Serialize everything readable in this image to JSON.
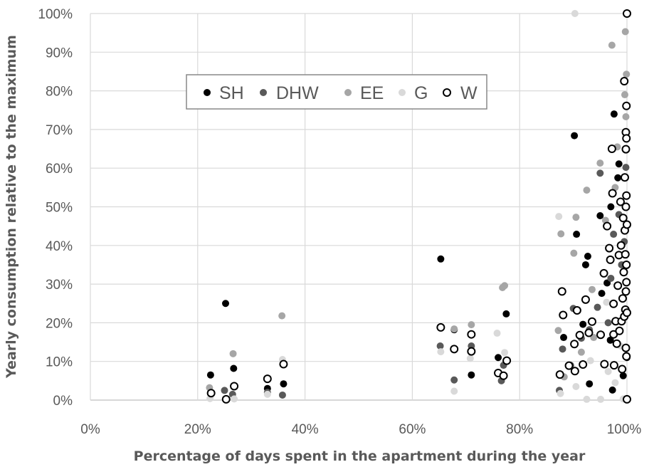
{
  "chart_data": {
    "type": "scatter",
    "xlabel": "Percentage of days spent in the apartment during the year",
    "ylabel": "Yearly consumption relative to the maximum",
    "xlim": [
      0,
      100
    ],
    "ylim": [
      0,
      100
    ],
    "x_ticks": [
      "0%",
      "20%",
      "40%",
      "60%",
      "80%",
      "100%"
    ],
    "y_ticks": [
      "0%",
      "10%",
      "20%",
      "30%",
      "40%",
      "50%",
      "60%",
      "70%",
      "80%",
      "90%",
      "100%"
    ],
    "grid": true,
    "legend_position": "top-center",
    "series": [
      {
        "name": "SH",
        "marker": "filled-circle",
        "color": "#000000",
        "points": [
          [
            22.4,
            6.5
          ],
          [
            25.2,
            25
          ],
          [
            26.7,
            8.2
          ],
          [
            33,
            3
          ],
          [
            36,
            4.2
          ],
          [
            65.3,
            36.5
          ],
          [
            67.8,
            18.2
          ],
          [
            71,
            6.5
          ],
          [
            76,
            11
          ],
          [
            77.5,
            22.3
          ],
          [
            90.2,
            68.4
          ],
          [
            90.6,
            42.9
          ],
          [
            92.3,
            35
          ],
          [
            92.7,
            37.2
          ],
          [
            95,
            47.7
          ],
          [
            97,
            50
          ],
          [
            97.6,
            74
          ],
          [
            98.5,
            61.1
          ],
          [
            98.3,
            57.5
          ],
          [
            96.3,
            30.3
          ],
          [
            95.3,
            27.6
          ],
          [
            93,
            4.2
          ],
          [
            97.3,
            2.6
          ],
          [
            88.2,
            16.2
          ],
          [
            91.8,
            19.6
          ],
          [
            96.9,
            15.5
          ],
          [
            99.3,
            6.3
          ],
          [
            100,
            11
          ]
        ]
      },
      {
        "name": "DHW",
        "marker": "filled-circle",
        "color": "#595959",
        "points": [
          [
            25,
            2.5
          ],
          [
            26.5,
            1.5
          ],
          [
            33,
            2
          ],
          [
            35.8,
            1.3
          ],
          [
            65.2,
            14
          ],
          [
            67.8,
            5.2
          ],
          [
            71,
            14
          ],
          [
            76.6,
            5
          ],
          [
            77,
            9
          ],
          [
            87.4,
            2.5
          ],
          [
            88,
            13.2
          ],
          [
            90,
            23.7
          ],
          [
            91.5,
            16
          ],
          [
            93,
            18.2
          ],
          [
            95,
            58.7
          ],
          [
            96.5,
            20
          ],
          [
            97.5,
            42.9
          ],
          [
            98.5,
            48
          ],
          [
            99.5,
            41
          ],
          [
            99.8,
            60.2
          ],
          [
            89.5,
            9
          ],
          [
            94.5,
            24
          ],
          [
            97,
            31.5
          ],
          [
            99,
            35
          ]
        ]
      },
      {
        "name": "EE",
        "marker": "filled-circle",
        "color": "#a6a6a6",
        "points": [
          [
            22.2,
            3.2
          ],
          [
            26.6,
            12
          ],
          [
            35.7,
            21.8
          ],
          [
            67.8,
            18.4
          ],
          [
            71,
            19.5
          ],
          [
            76.8,
            29.1
          ],
          [
            77.2,
            29.6
          ],
          [
            87.2,
            18
          ],
          [
            87.7,
            43
          ],
          [
            90.1,
            38
          ],
          [
            90.5,
            47.3
          ],
          [
            92.5,
            54.3
          ],
          [
            93.5,
            28.6
          ],
          [
            95,
            61.3
          ],
          [
            97.2,
            91.8
          ],
          [
            99.7,
            95.3
          ],
          [
            99.9,
            84.3
          ],
          [
            99.6,
            79
          ],
          [
            99.8,
            73.3
          ],
          [
            97.8,
            55
          ],
          [
            96,
            46.5
          ],
          [
            88.3,
            6
          ],
          [
            91.5,
            12.4
          ],
          [
            93.8,
            16.2
          ],
          [
            98.2,
            65.5
          ]
        ]
      },
      {
        "name": "G",
        "marker": "filled-circle",
        "color": "#d9d9d9",
        "points": [
          [
            22.3,
            0.4
          ],
          [
            26.8,
            0.3
          ],
          [
            33,
            1.5
          ],
          [
            35.8,
            10.5
          ],
          [
            65.3,
            12.5
          ],
          [
            67.8,
            2.3
          ],
          [
            70.8,
            10.8
          ],
          [
            75.8,
            17.3
          ],
          [
            77.2,
            12.3
          ],
          [
            87.3,
            47.5
          ],
          [
            87.6,
            1.7
          ],
          [
            90.3,
            100
          ],
          [
            90.5,
            3.5
          ],
          [
            92.5,
            0.2
          ],
          [
            95.1,
            0.2
          ],
          [
            96.5,
            7.4
          ],
          [
            97.8,
            4.5
          ],
          [
            99.3,
            0.3
          ],
          [
            98.8,
            14
          ],
          [
            96.2,
            25.3
          ],
          [
            93.2,
            10.2
          ]
        ]
      },
      {
        "name": "W",
        "marker": "open-circle",
        "color": "#000000",
        "points": [
          [
            22.5,
            1.8
          ],
          [
            25.3,
            0.2
          ],
          [
            26.8,
            3.6
          ],
          [
            33,
            5.5
          ],
          [
            36,
            9.3
          ],
          [
            65.3,
            18.8
          ],
          [
            67.8,
            13.2
          ],
          [
            71,
            17
          ],
          [
            71,
            12.6
          ],
          [
            76,
            7
          ],
          [
            77,
            6.3
          ],
          [
            77.6,
            10.2
          ],
          [
            87.5,
            6.6
          ],
          [
            87.9,
            28.1
          ],
          [
            88.1,
            22
          ],
          [
            89.2,
            8.9
          ],
          [
            90.2,
            14.5
          ],
          [
            90.3,
            7.5
          ],
          [
            90.7,
            23.2
          ],
          [
            91.2,
            16.8
          ],
          [
            91.8,
            9.2
          ],
          [
            92.3,
            26
          ],
          [
            92.9,
            17.4
          ],
          [
            93.5,
            20.3
          ],
          [
            95.1,
            16.9
          ],
          [
            95.7,
            32.8
          ],
          [
            95.8,
            9.3
          ],
          [
            96.3,
            45
          ],
          [
            96.7,
            39.3
          ],
          [
            96.9,
            36.3
          ],
          [
            97.2,
            65
          ],
          [
            97.3,
            53.5
          ],
          [
            97.5,
            24.9
          ],
          [
            97.5,
            17
          ],
          [
            97.6,
            9
          ],
          [
            97.9,
            20.4
          ],
          [
            98.1,
            14.6
          ],
          [
            98.3,
            29.6
          ],
          [
            98.5,
            37.5
          ],
          [
            98.6,
            17.9
          ],
          [
            98.8,
            51.3
          ],
          [
            98.9,
            40
          ],
          [
            99,
            20.4
          ],
          [
            99.1,
            8
          ],
          [
            99.2,
            26.3
          ],
          [
            99.3,
            47.1
          ],
          [
            99.4,
            33.1
          ],
          [
            99.5,
            82.5
          ],
          [
            99.5,
            21.6
          ],
          [
            99.6,
            57.6
          ],
          [
            99.6,
            43.9
          ],
          [
            99.7,
            37.7
          ],
          [
            99.7,
            23.4
          ],
          [
            99.8,
            69.3
          ],
          [
            99.8,
            64.9
          ],
          [
            99.8,
            50
          ],
          [
            99.8,
            28.1
          ],
          [
            99.8,
            13.5
          ],
          [
            99.9,
            76.1
          ],
          [
            99.9,
            67.7
          ],
          [
            99.9,
            52.9
          ],
          [
            99.9,
            35
          ],
          [
            99.9,
            30.5
          ],
          [
            99.9,
            11.3
          ],
          [
            100,
            100
          ],
          [
            100,
            0.2
          ],
          [
            100,
            45.4
          ],
          [
            100,
            22.6
          ]
        ]
      }
    ]
  }
}
